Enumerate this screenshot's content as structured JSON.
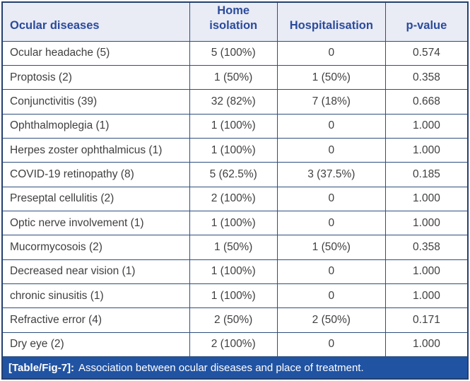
{
  "table": {
    "columns": [
      {
        "label": "Ocular diseases"
      },
      {
        "label": "Home isolation"
      },
      {
        "label": "Hospitalisation"
      },
      {
        "label": "p-value"
      }
    ],
    "rows": [
      {
        "disease": "Ocular headache (5)",
        "home_isolation": "5 (100%)",
        "hospitalisation": "0",
        "p_value": "0.574"
      },
      {
        "disease": "Proptosis (2)",
        "home_isolation": "1 (50%)",
        "hospitalisation": "1 (50%)",
        "p_value": "0.358"
      },
      {
        "disease": "Conjunctivitis (39)",
        "home_isolation": "32 (82%)",
        "hospitalisation": "7 (18%)",
        "p_value": "0.668"
      },
      {
        "disease": "Ophthalmoplegia (1)",
        "home_isolation": "1 (100%)",
        "hospitalisation": "0",
        "p_value": "1.000"
      },
      {
        "disease": "Herpes zoster ophthalmicus (1)",
        "home_isolation": "1 (100%)",
        "hospitalisation": "0",
        "p_value": "1.000"
      },
      {
        "disease": "COVID-19 retinopathy (8)",
        "home_isolation": "5 (62.5%)",
        "hospitalisation": "3 (37.5%)",
        "p_value": "0.185"
      },
      {
        "disease": "Preseptal cellulitis (2)",
        "home_isolation": "2 (100%)",
        "hospitalisation": "0",
        "p_value": "1.000"
      },
      {
        "disease": "Optic nerve involvement (1)",
        "home_isolation": "1 (100%)",
        "hospitalisation": "0",
        "p_value": "1.000"
      },
      {
        "disease": "Mucormycosois (2)",
        "home_isolation": "1 (50%)",
        "hospitalisation": "1 (50%)",
        "p_value": "0.358"
      },
      {
        "disease": "Decreased near vision (1)",
        "home_isolation": "1 (100%)",
        "hospitalisation": "0",
        "p_value": "1.000"
      },
      {
        "disease": "chronic sinusitis (1)",
        "home_isolation": "1 (100%)",
        "hospitalisation": "0",
        "p_value": "1.000"
      },
      {
        "disease": "Refractive error (4)",
        "home_isolation": "2 (50%)",
        "hospitalisation": "2 (50%)",
        "p_value": "0.171"
      },
      {
        "disease": "Dry eye (2)",
        "home_isolation": "2 (100%)",
        "hospitalisation": "0",
        "p_value": "1.000"
      }
    ]
  },
  "caption": {
    "label": "[Table/Fig-7]:",
    "text": "Association between ocular diseases and place of treatment."
  },
  "colors": {
    "header_background": "#e9ebf5",
    "header_text": "#2b4b9b",
    "grid_border": "#2e4e7e",
    "outer_border": "#24406e",
    "body_text": "#3f3f3f",
    "caption_background": "#2153a3",
    "caption_text": "#ffffff"
  }
}
